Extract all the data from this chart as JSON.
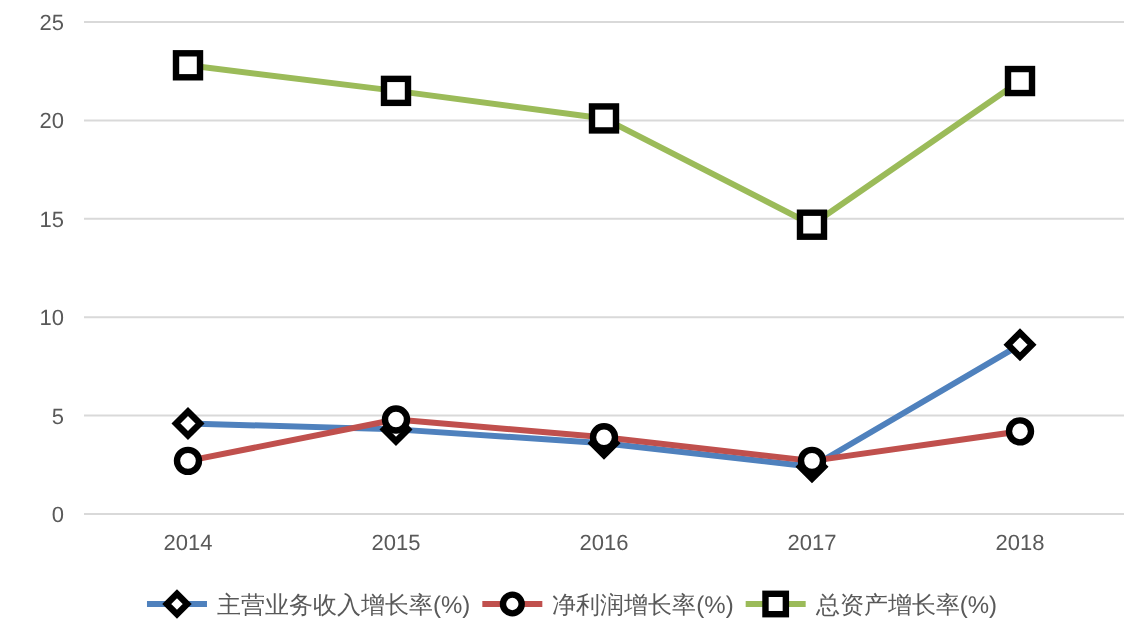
{
  "chart_data": {
    "type": "line",
    "categories": [
      "2014",
      "2015",
      "2016",
      "2017",
      "2018"
    ],
    "series": [
      {
        "name": "主营业务收入增长率(%)",
        "color": "#4f81bd",
        "marker": "diamond",
        "values": [
          4.6,
          4.3,
          3.6,
          2.4,
          8.6
        ]
      },
      {
        "name": "净利润增长率(%)",
        "color": "#c0504d",
        "marker": "circle",
        "values": [
          2.7,
          4.8,
          3.9,
          2.7,
          4.2
        ]
      },
      {
        "name": "总资产增长率(%)",
        "color": "#9bbb59",
        "marker": "square",
        "values": [
          22.8,
          21.5,
          20.1,
          14.7,
          22.0
        ]
      }
    ],
    "ylim": [
      0,
      25
    ],
    "yticks": [
      0,
      5,
      10,
      15,
      20,
      25
    ],
    "grid": "y",
    "legend": "bottom",
    "line_style": "solid"
  }
}
